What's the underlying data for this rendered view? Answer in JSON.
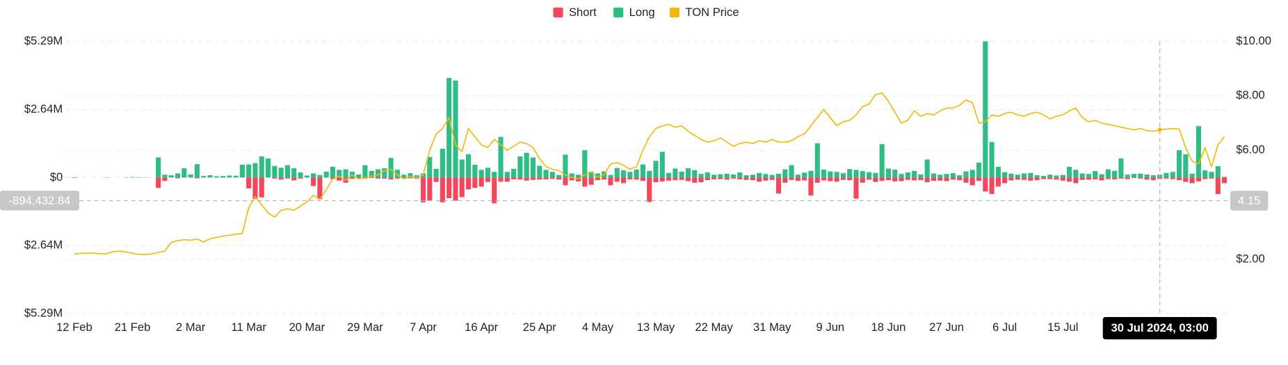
{
  "chart_data": {
    "type": "bar-line",
    "categories": [
      "12 Feb",
      null,
      null,
      null,
      null,
      null,
      null,
      null,
      null,
      "21 Feb",
      null,
      null,
      null,
      null,
      null,
      null,
      null,
      null,
      "2 Mar",
      null,
      null,
      null,
      null,
      null,
      null,
      null,
      null,
      "11 Mar",
      null,
      null,
      null,
      null,
      null,
      null,
      null,
      null,
      "20 Mar",
      null,
      null,
      null,
      null,
      null,
      null,
      null,
      null,
      "29 Mar",
      null,
      null,
      null,
      null,
      null,
      null,
      null,
      null,
      "7 Apr",
      null,
      null,
      null,
      null,
      null,
      null,
      null,
      null,
      "16 Apr",
      null,
      null,
      null,
      null,
      null,
      null,
      null,
      null,
      "25 Apr",
      null,
      null,
      null,
      null,
      null,
      null,
      null,
      null,
      "4 May",
      null,
      null,
      null,
      null,
      null,
      null,
      null,
      null,
      "13 May",
      null,
      null,
      null,
      null,
      null,
      null,
      null,
      null,
      "22 May",
      null,
      null,
      null,
      null,
      null,
      null,
      null,
      null,
      "31 May",
      null,
      null,
      null,
      null,
      null,
      null,
      null,
      null,
      "9 Jun",
      null,
      null,
      null,
      null,
      null,
      null,
      null,
      null,
      "18 Jun",
      null,
      null,
      null,
      null,
      null,
      null,
      null,
      null,
      "27 Jun",
      null,
      null,
      null,
      null,
      null,
      null,
      null,
      null,
      "6 Jul",
      null,
      null,
      null,
      null,
      null,
      null,
      null,
      null,
      "15 Jul",
      null,
      null,
      null,
      null,
      null,
      null,
      null,
      null,
      null,
      null,
      null,
      null,
      null,
      null,
      null,
      null,
      null,
      null,
      null,
      null,
      null,
      null,
      null,
      null,
      null
    ],
    "series": [
      {
        "name": "Short",
        "color": "#f6465d",
        "values": [
          -20000,
          0,
          0,
          0,
          0,
          -10000,
          0,
          0,
          0,
          0,
          0,
          0,
          0,
          -400000,
          -130000,
          0,
          -30000,
          0,
          0,
          -30000,
          0,
          0,
          0,
          0,
          0,
          0,
          0,
          -420000,
          -830000,
          -770000,
          0,
          -40000,
          -80000,
          -40000,
          -110000,
          -40000,
          0,
          -330000,
          -840000,
          0,
          -60000,
          -120000,
          -200000,
          -50000,
          -30000,
          -40000,
          -20000,
          -40000,
          -40000,
          -70000,
          -40000,
          -30000,
          -30000,
          -40000,
          -960000,
          -900000,
          -170000,
          -960000,
          -800000,
          -900000,
          -760000,
          -460000,
          -400000,
          -350000,
          -170000,
          -1000000,
          -160000,
          -160000,
          -70000,
          -80000,
          -120000,
          -90000,
          -80000,
          -70000,
          -50000,
          -80000,
          -300000,
          -110000,
          -150000,
          -350000,
          -280000,
          -100000,
          -80000,
          -300000,
          -160000,
          -220000,
          -70000,
          -80000,
          -130000,
          -950000,
          -180000,
          -150000,
          -120000,
          -100000,
          -90000,
          -140000,
          -200000,
          -180000,
          -100000,
          -70000,
          -60000,
          -80000,
          -40000,
          -70000,
          -90000,
          -100000,
          -160000,
          -120000,
          -90000,
          -620000,
          -200000,
          -90000,
          -130000,
          -110000,
          -700000,
          -200000,
          -110000,
          -140000,
          -160000,
          -90000,
          -100000,
          -820000,
          -200000,
          -80000,
          -170000,
          -130000,
          -100000,
          -150000,
          -140000,
          -90000,
          -110000,
          -100000,
          -180000,
          -130000,
          -120000,
          -140000,
          -80000,
          -100000,
          -200000,
          -300000,
          -130000,
          -540000,
          -640000,
          -350000,
          -220000,
          -110000,
          -80000,
          -90000,
          -120000,
          -100000,
          -60000,
          -60000,
          -80000,
          -120000,
          -160000,
          -220000,
          -90000,
          -80000,
          -70000,
          -110000,
          -60000,
          -70000,
          -40000,
          -60000,
          -20000,
          -40000,
          -80000,
          -100000,
          -50000,
          -40000,
          -60000,
          -100000,
          -170000,
          -220000,
          -150000,
          -60000,
          -40000,
          -640000,
          -220000
        ]
      },
      {
        "name": "Long",
        "color": "#2ebd85",
        "values": [
          0,
          0,
          0,
          0,
          0,
          0,
          0,
          0,
          10000,
          20000,
          15000,
          10000,
          0,
          780000,
          110000,
          90000,
          160000,
          360000,
          120000,
          520000,
          60000,
          90000,
          50000,
          60000,
          80000,
          70000,
          500000,
          510000,
          560000,
          820000,
          740000,
          450000,
          380000,
          480000,
          360000,
          200000,
          80000,
          160000,
          100000,
          230000,
          420000,
          300000,
          320000,
          230000,
          120000,
          480000,
          260000,
          320000,
          360000,
          760000,
          300000,
          110000,
          170000,
          90000,
          160000,
          800000,
          340000,
          1120000,
          3870000,
          3770000,
          700000,
          900000,
          500000,
          300000,
          380000,
          220000,
          1580000,
          220000,
          340000,
          820000,
          960000,
          780000,
          460000,
          300000,
          220000,
          100000,
          890000,
          160000,
          110000,
          1060000,
          230000,
          160000,
          240000,
          100000,
          370000,
          280000,
          220000,
          310000,
          510000,
          260000,
          650000,
          1000000,
          180000,
          350000,
          230000,
          360000,
          290000,
          140000,
          200000,
          110000,
          130000,
          150000,
          120000,
          200000,
          90000,
          110000,
          180000,
          140000,
          100000,
          150000,
          320000,
          480000,
          110000,
          190000,
          260000,
          1330000,
          310000,
          240000,
          220000,
          170000,
          330000,
          300000,
          250000,
          210000,
          180000,
          1300000,
          350000,
          310000,
          140000,
          200000,
          260000,
          120000,
          700000,
          160000,
          110000,
          140000,
          170000,
          90000,
          240000,
          300000,
          580000,
          5290000,
          1380000,
          420000,
          210000,
          150000,
          110000,
          160000,
          180000,
          90000,
          60000,
          110000,
          80000,
          100000,
          420000,
          300000,
          160000,
          140000,
          250000,
          130000,
          320000,
          260000,
          740000,
          110000,
          140000,
          150000,
          120000,
          90000,
          110000,
          180000,
          220000,
          1060000,
          900000,
          150000,
          2000000,
          280000,
          220000,
          440000,
          30000
        ]
      },
      {
        "name": "TON Price",
        "color": "#f0b90b",
        "axis": "y2",
        "values": [
          2.19,
          2.22,
          2.22,
          2.23,
          2.2,
          2.21,
          2.28,
          2.3,
          2.27,
          2.22,
          2.18,
          2.17,
          2.2,
          2.25,
          2.3,
          2.62,
          2.68,
          2.72,
          2.7,
          2.75,
          2.63,
          2.75,
          2.8,
          2.85,
          2.88,
          2.92,
          2.95,
          3.9,
          4.3,
          4.0,
          3.7,
          3.55,
          3.8,
          3.85,
          3.8,
          3.95,
          4.1,
          4.35,
          4.2,
          4.55,
          4.95,
          5.05,
          4.9,
          5.1,
          4.95,
          5.0,
          5.05,
          5.1,
          5.25,
          5.3,
          5.1,
          4.95,
          5.05,
          5.0,
          5.1,
          6.0,
          6.6,
          6.8,
          7.2,
          6.2,
          5.95,
          6.8,
          6.5,
          6.2,
          6.1,
          6.4,
          6.2,
          6.0,
          6.15,
          6.3,
          6.25,
          6.1,
          5.7,
          5.4,
          5.3,
          5.25,
          5.1,
          5.0,
          4.95,
          5.1,
          5.2,
          5.0,
          5.1,
          5.5,
          5.55,
          5.45,
          5.3,
          5.4,
          6.0,
          6.5,
          6.8,
          6.9,
          6.95,
          6.85,
          6.9,
          6.7,
          6.55,
          6.4,
          6.3,
          6.35,
          6.45,
          6.3,
          6.15,
          6.25,
          6.3,
          6.25,
          6.35,
          6.3,
          6.4,
          6.3,
          6.3,
          6.35,
          6.5,
          6.6,
          6.9,
          7.2,
          7.5,
          7.2,
          6.9,
          7.05,
          7.1,
          7.3,
          7.6,
          7.7,
          8.05,
          8.1,
          7.8,
          7.4,
          7.0,
          7.1,
          7.45,
          7.25,
          7.35,
          7.3,
          7.45,
          7.55,
          7.55,
          7.65,
          7.85,
          7.75,
          7.0,
          7.05,
          7.3,
          7.25,
          7.35,
          7.4,
          7.3,
          7.25,
          7.35,
          7.4,
          7.3,
          7.15,
          7.25,
          7.3,
          7.45,
          7.55,
          7.2,
          7.05,
          7.1,
          7.0,
          6.95,
          6.9,
          6.85,
          6.8,
          6.75,
          6.8,
          6.72,
          6.7,
          6.75,
          6.78,
          6.8,
          6.78,
          6.1,
          5.6,
          5.5,
          6.1,
          5.4,
          6.2,
          6.5
        ]
      }
    ],
    "ylim": [
      -5290000,
      5290000
    ],
    "yticks": [
      {
        "value": 5290000,
        "label": "$5.29M"
      },
      {
        "value": 2640000,
        "label": "$2.64M"
      },
      {
        "value": 0,
        "label": "$0"
      },
      {
        "value": -2640000,
        "label": "$2.64M"
      },
      {
        "value": -5290000,
        "label": "$5.29M"
      }
    ],
    "y2lim": [
      0,
      10
    ],
    "y2ticks": [
      {
        "value": 10,
        "label": "$10.00"
      },
      {
        "value": 8,
        "label": "$8.00"
      },
      {
        "value": 6,
        "label": "$6.00"
      },
      {
        "value": 2,
        "label": "$2.00"
      }
    ],
    "grid": true,
    "legend": "top",
    "crosshair": {
      "x_label": "30 Jul 2024, 03:00",
      "y": {
        "value": -894432.84,
        "label": "-894,432.84"
      },
      "y2": 4.15
    }
  }
}
